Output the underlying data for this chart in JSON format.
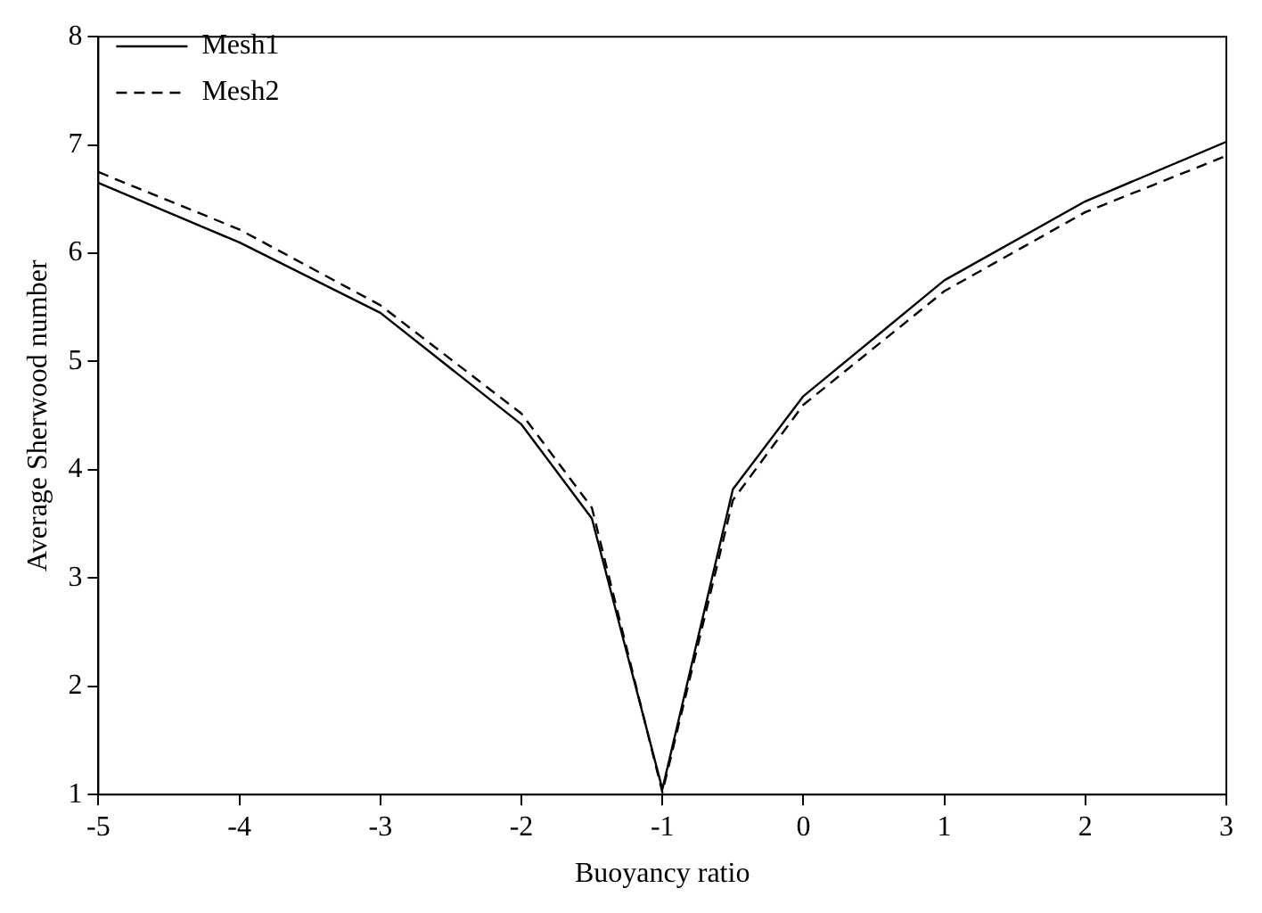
{
  "chart_data": {
    "type": "line",
    "xlabel": "Buoyancy ratio",
    "ylabel": "Average Sherwood number",
    "x": [
      -5,
      -4,
      -3,
      -2,
      -1.5,
      -1,
      -0.5,
      0,
      1,
      2,
      3
    ],
    "series": [
      {
        "name": "Mesh1",
        "color": "#000000",
        "line_style": "solid",
        "values": [
          6.65,
          6.1,
          5.45,
          4.42,
          3.55,
          1.05,
          3.82,
          4.68,
          5.75,
          6.48,
          7.03
        ]
      },
      {
        "name": "Mesh2",
        "color": "#000000",
        "line_style": "dashed",
        "values": [
          6.75,
          6.22,
          5.52,
          4.52,
          3.65,
          1.02,
          3.72,
          4.6,
          5.65,
          6.38,
          6.9
        ]
      }
    ],
    "xlim": [
      -5,
      3
    ],
    "xticks": [
      -5,
      -4,
      -3,
      -2,
      -1,
      0,
      1,
      2,
      3
    ],
    "ylim": [
      1,
      8
    ],
    "yticks": [
      1,
      2,
      3,
      4,
      5,
      6,
      7,
      8
    ],
    "grid": false,
    "legend": "top left",
    "marker": "none"
  }
}
